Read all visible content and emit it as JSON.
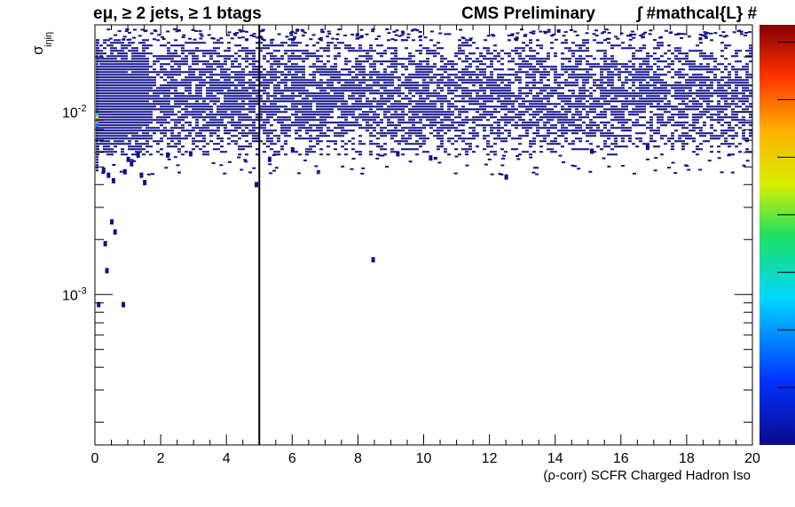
{
  "title_left": "eμ, ≥ 2 jets, ≥ 1 btags",
  "title_cms": "CMS Preliminary",
  "title_lumi": "∫ #mathcal{L}  #",
  "chart_data": {
    "type": "heatmap",
    "xlabel": "(ρ-corr) SCFR Charged Hadron Iso",
    "ylabel": "σ_iηiη",
    "xlim": [
      0,
      20
    ],
    "ylim": [
      0.00015,
      0.03
    ],
    "y_scale": "log",
    "x_ticks": [
      "0",
      "2",
      "4",
      "6",
      "8",
      "10",
      "12",
      "14",
      "16",
      "18",
      "20"
    ],
    "y_tick_labels": [
      {
        "value": 0.01,
        "base": "10",
        "exp": "-2"
      },
      {
        "value": 0.001,
        "base": "10",
        "exp": "-3"
      }
    ],
    "cut_line_x": 5,
    "colorbar": "rainbow (blue low → red high)",
    "dense_band": {
      "x_range": [
        0,
        20
      ],
      "y_range": [
        0.006,
        0.025
      ]
    },
    "outlier_points": [
      [
        0.25,
        0.0048
      ],
      [
        0.4,
        0.0045
      ],
      [
        0.55,
        0.0042
      ],
      [
        0.9,
        0.0047
      ],
      [
        1.0,
        0.0055
      ],
      [
        1.1,
        0.0052
      ],
      [
        1.3,
        0.0058
      ],
      [
        1.4,
        0.0045
      ],
      [
        1.5,
        0.0041
      ],
      [
        2.2,
        0.0058
      ],
      [
        2.9,
        0.0059
      ],
      [
        4.9,
        0.004
      ],
      [
        5.3,
        0.0055
      ],
      [
        6.0,
        0.0062
      ],
      [
        9.2,
        0.0059
      ],
      [
        10.2,
        0.0056
      ],
      [
        12.5,
        0.0044
      ],
      [
        15.1,
        0.0061
      ],
      [
        16.8,
        0.0064
      ],
      [
        0.5,
        0.0025
      ],
      [
        0.3,
        0.0019
      ],
      [
        0.6,
        0.0022
      ],
      [
        0.35,
        0.00135
      ],
      [
        0.85,
        0.00088
      ],
      [
        0.1,
        0.00088
      ],
      [
        8.45,
        0.00155
      ]
    ],
    "hotspot": {
      "x": 0.05,
      "y": 0.0092
    }
  }
}
